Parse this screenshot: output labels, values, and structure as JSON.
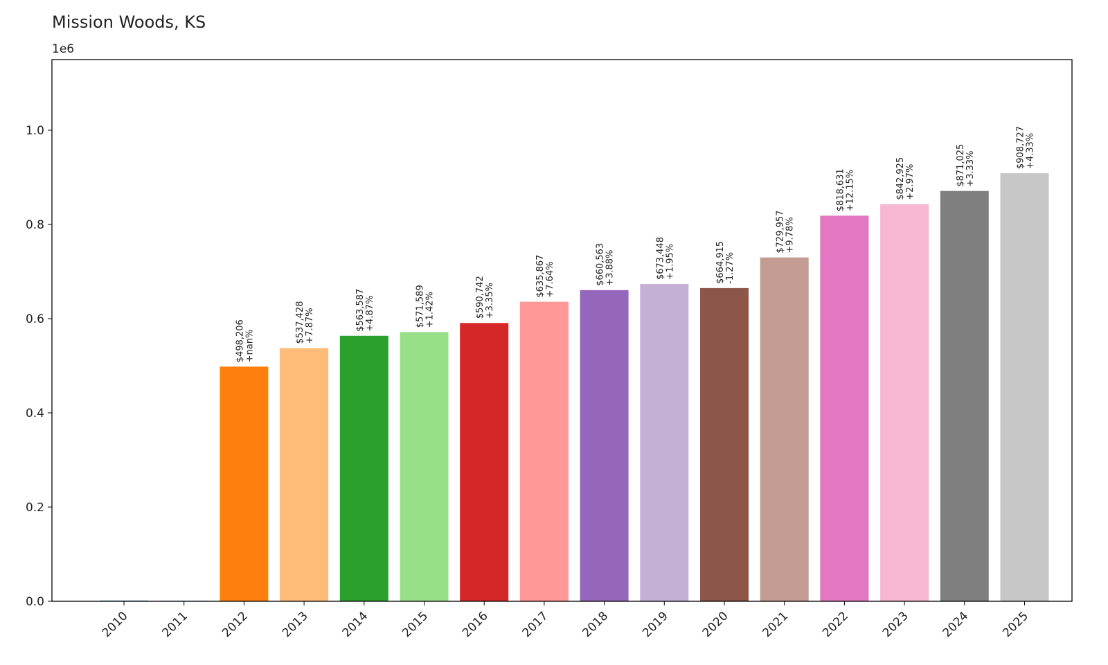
{
  "chart_data": {
    "type": "bar",
    "title": "Mission Woods, KS",
    "xlabel": "",
    "ylabel": "",
    "y_multiplier_label": "1e6",
    "y_scale": 1000000,
    "ylim": [
      0,
      1150000
    ],
    "yticks": [
      0,
      200000,
      400000,
      600000,
      800000,
      1000000
    ],
    "ytick_labels": [
      "0.0",
      "0.2",
      "0.4",
      "0.6",
      "0.8",
      "1.0"
    ],
    "grid": false,
    "categories": [
      "2010",
      "2011",
      "2012",
      "2013",
      "2014",
      "2015",
      "2016",
      "2017",
      "2018",
      "2019",
      "2020",
      "2021",
      "2022",
      "2023",
      "2024",
      "2025"
    ],
    "values": [
      0,
      0,
      498206,
      537428,
      563587,
      571589,
      590742,
      635867,
      660563,
      673448,
      664915,
      729957,
      818631,
      842925,
      871025,
      908727
    ],
    "value_labels": [
      "",
      "",
      "$498,206",
      "$537,428",
      "$563,587",
      "$571,589",
      "$590,742",
      "$635,867",
      "$660,563",
      "$673,448",
      "$664,915",
      "$729,957",
      "$818,631",
      "$842,925",
      "$871,025",
      "$908,727"
    ],
    "change_labels": [
      "",
      "",
      "+nan%",
      "+7.87%",
      "+4.87%",
      "+1.42%",
      "+3.35%",
      "+7.64%",
      "+3.88%",
      "+1.95%",
      "-1.27%",
      "+9.78%",
      "+12.15%",
      "+2.97%",
      "+3.33%",
      "+4.33%"
    ],
    "colors": [
      "#1f77b4",
      "#aec7e8",
      "#ff7f0e",
      "#ffbb78",
      "#2ca02c",
      "#98df8a",
      "#d62728",
      "#ff9896",
      "#9467bd",
      "#c5b0d5",
      "#8c564b",
      "#c49c94",
      "#e377c2",
      "#f7b6d2",
      "#7f7f7f",
      "#c7c7c7"
    ]
  }
}
